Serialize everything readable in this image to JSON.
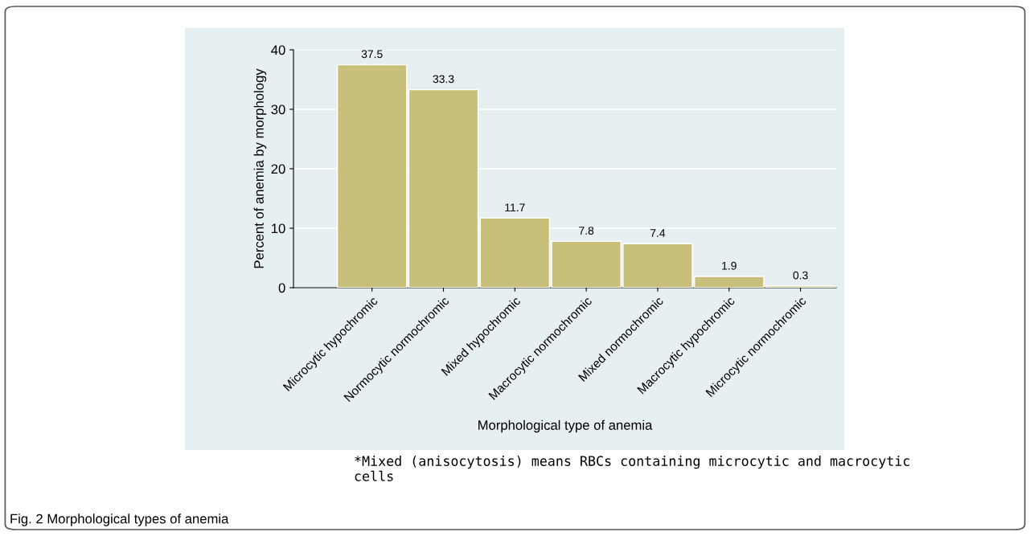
{
  "chart_data": {
    "type": "bar",
    "title": "Fig. 2 Morphological types of anemia",
    "xlabel": "Morphological type of anemia",
    "ylabel": "Percent of anemia by morphology",
    "categories": [
      "Microcytic hypochromic",
      "Normocytic normochromic",
      "Mixed hypochromic",
      "Macrocytic normochromic",
      "Mixed normochromic",
      "Macrocytic hypochromic",
      "Microcytic normochromic"
    ],
    "values": [
      37.5,
      33.3,
      11.7,
      7.8,
      7.4,
      1.9,
      0.3
    ],
    "color": "#c8c07a",
    "ylim": [
      0,
      40
    ],
    "yticks": [
      0,
      10,
      20,
      30,
      40
    ],
    "grid": "y",
    "data_labels": true,
    "annotations": [
      "*Mixed (anisocytosis) means RBCs containing microcytic and macrocytic\ncells"
    ]
  }
}
